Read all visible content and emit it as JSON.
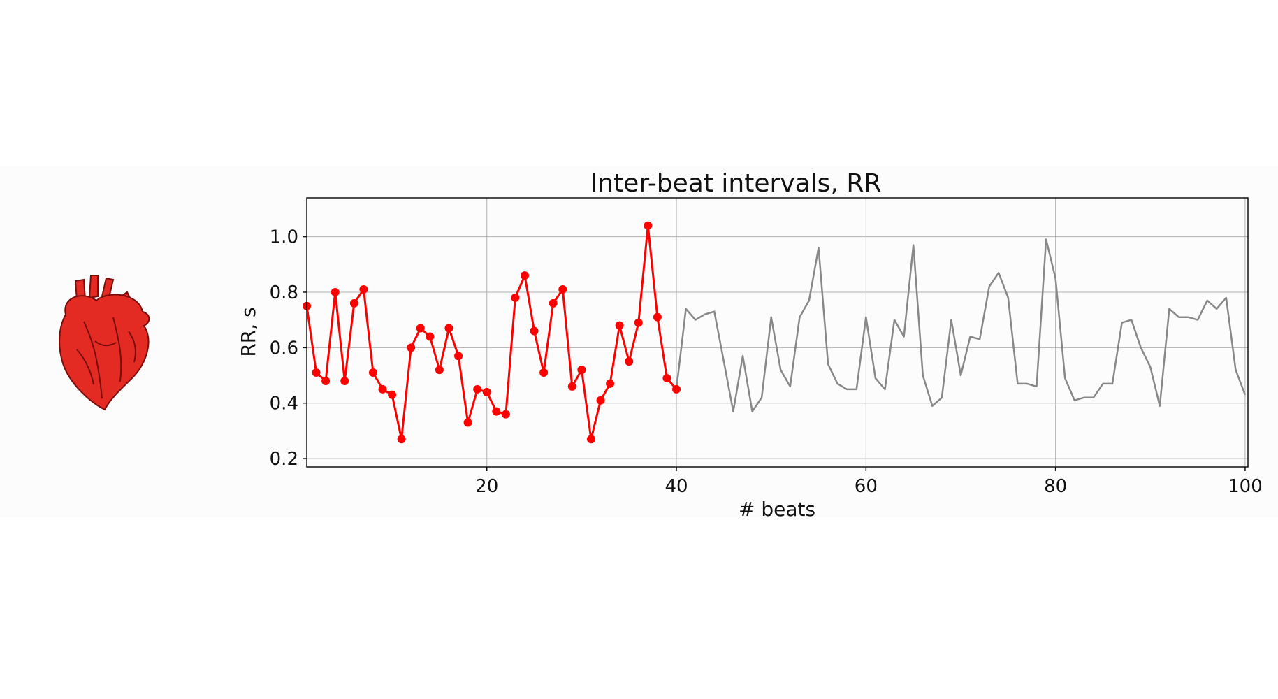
{
  "chart_data": {
    "type": "line",
    "title": "Inter-beat intervals, RR",
    "xlabel": "# beats",
    "ylabel": "RR, s",
    "xlim": [
      1,
      100.3
    ],
    "ylim": [
      0.17,
      1.14
    ],
    "xticks": [
      20,
      40,
      60,
      80,
      100
    ],
    "yticks": [
      0.2,
      0.4,
      0.6,
      0.8,
      1.0
    ],
    "xtick_labels": [
      "20",
      "40",
      "60",
      "80",
      "100"
    ],
    "ytick_labels": [
      "0.2",
      "0.4",
      "0.6",
      "0.8",
      "1.0"
    ],
    "grid": true,
    "series": [
      {
        "style": "red line with markers",
        "color": "#ff0000",
        "x": [
          1,
          2,
          3,
          4,
          5,
          6,
          7,
          8,
          9,
          10,
          11,
          12,
          13,
          14,
          15,
          16,
          17,
          18,
          19,
          20,
          21,
          22,
          23,
          24,
          25,
          26,
          27,
          28,
          29,
          30,
          31,
          32,
          33,
          34,
          35,
          36,
          37,
          38,
          39,
          40
        ],
        "values": [
          0.75,
          0.51,
          0.48,
          0.8,
          0.48,
          0.76,
          0.81,
          0.51,
          0.45,
          0.43,
          0.27,
          0.6,
          0.67,
          0.64,
          0.52,
          0.67,
          0.57,
          0.33,
          0.45,
          0.44,
          0.37,
          0.36,
          0.78,
          0.86,
          0.66,
          0.51,
          0.76,
          0.81,
          0.46,
          0.52,
          0.27,
          0.41,
          0.47,
          0.68,
          0.55,
          0.69,
          1.04,
          0.71,
          0.49,
          0.45
        ]
      },
      {
        "style": "gray line",
        "color": "#888888",
        "x": [
          40,
          41,
          42,
          43,
          44,
          45,
          46,
          47,
          48,
          49,
          50,
          51,
          52,
          53,
          54,
          55,
          56,
          57,
          58,
          59,
          60,
          61,
          62,
          63,
          64,
          65,
          66,
          67,
          68,
          69,
          70,
          71,
          72,
          73,
          74,
          75,
          76,
          77,
          78,
          79,
          80,
          81,
          82,
          83,
          84,
          85,
          86,
          87,
          88,
          89,
          90,
          91,
          92,
          93,
          94,
          95,
          96,
          97,
          98,
          99,
          100
        ],
        "values": [
          0.45,
          0.74,
          0.7,
          0.72,
          0.73,
          0.55,
          0.37,
          0.57,
          0.37,
          0.42,
          0.71,
          0.52,
          0.46,
          0.71,
          0.77,
          0.96,
          0.54,
          0.47,
          0.45,
          0.45,
          0.71,
          0.49,
          0.45,
          0.7,
          0.64,
          0.97,
          0.5,
          0.39,
          0.42,
          0.7,
          0.5,
          0.64,
          0.63,
          0.82,
          0.87,
          0.78,
          0.47,
          0.47,
          0.46,
          0.99,
          0.85,
          0.49,
          0.41,
          0.42,
          0.42,
          0.47,
          0.47,
          0.69,
          0.7,
          0.6,
          0.53,
          0.39,
          0.74,
          0.71,
          0.71,
          0.7,
          0.77,
          0.74,
          0.78,
          0.52,
          0.43
        ]
      }
    ]
  }
}
